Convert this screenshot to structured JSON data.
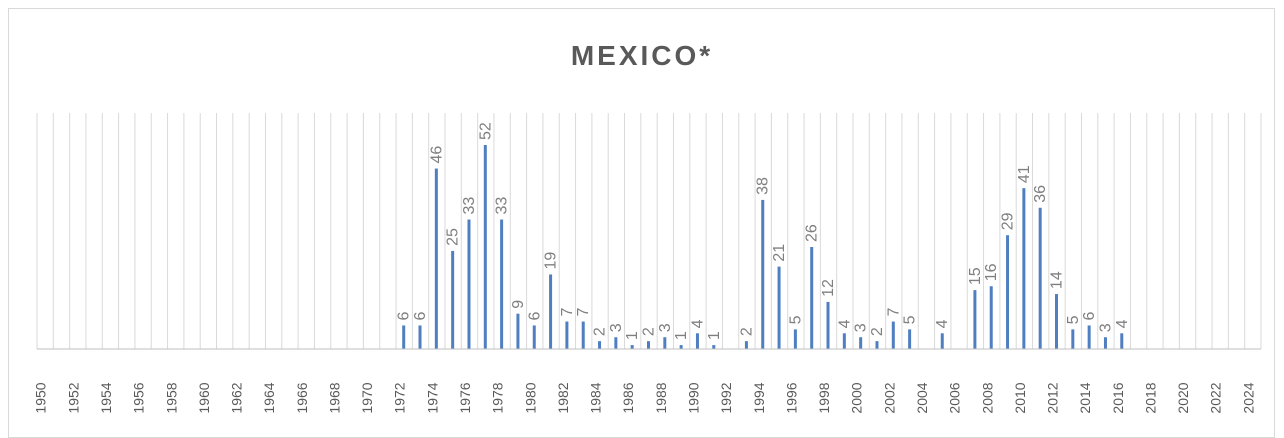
{
  "chart_data": {
    "type": "bar",
    "title": "MEXICO*",
    "xlabel": "",
    "ylabel": "",
    "x_range": [
      1950,
      2024
    ],
    "x_tick_labels": [
      "1950",
      "1952",
      "1954",
      "1956",
      "1958",
      "1960",
      "1962",
      "1964",
      "1966",
      "1968",
      "1970",
      "1972",
      "1974",
      "1976",
      "1978",
      "1980",
      "1982",
      "1984",
      "1986",
      "1988",
      "1990",
      "1992",
      "1994",
      "1996",
      "1998",
      "2000",
      "2002",
      "2004",
      "2006",
      "2008",
      "2010",
      "2012",
      "2014",
      "2016",
      "2018",
      "2020",
      "2022",
      "2024"
    ],
    "ylim": [
      0,
      52
    ],
    "grid": "vertical",
    "legend": "none",
    "bar_color": "#4f7fc0",
    "years": [
      1972,
      1973,
      1974,
      1975,
      1976,
      1977,
      1978,
      1979,
      1980,
      1981,
      1982,
      1983,
      1984,
      1985,
      1986,
      1987,
      1988,
      1989,
      1990,
      1991,
      1993,
      1994,
      1995,
      1996,
      1997,
      1998,
      1999,
      2000,
      2001,
      2002,
      2003,
      2005,
      2007,
      2008,
      2009,
      2010,
      2011,
      2012,
      2013,
      2014,
      2015,
      2016
    ],
    "values": [
      6,
      6,
      46,
      25,
      33,
      52,
      33,
      9,
      6,
      19,
      7,
      7,
      2,
      3,
      1,
      2,
      3,
      1,
      4,
      1,
      2,
      38,
      21,
      5,
      26,
      12,
      4,
      3,
      2,
      7,
      5,
      4,
      15,
      16,
      29,
      41,
      36,
      14,
      5,
      6,
      3,
      4
    ]
  }
}
